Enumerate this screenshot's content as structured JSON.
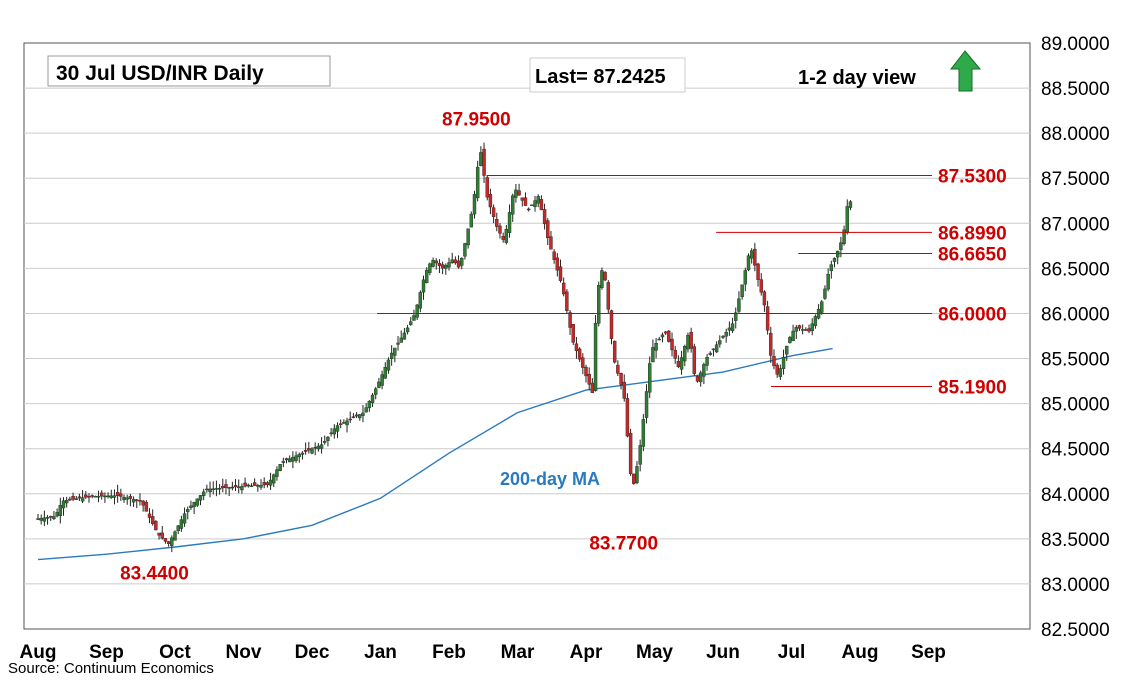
{
  "chart_data": {
    "type": "candlestick",
    "title": "30 Jul  USD/INR  Daily",
    "last_label": "Last= 87.2425",
    "view_label": "1-2 day view",
    "view_direction": "up",
    "source": "Source: Continuum Economics",
    "ylim": [
      82.5,
      89.0
    ],
    "y_ticks": [
      "82.5000",
      "83.0000",
      "83.5000",
      "84.0000",
      "84.5000",
      "85.0000",
      "85.5000",
      "86.0000",
      "86.5000",
      "87.0000",
      "87.5000",
      "88.0000",
      "88.5000",
      "89.0000"
    ],
    "x_ticks": [
      "Aug",
      "Sep",
      "Oct",
      "Nov",
      "Dec",
      "Jan",
      "Feb",
      "Mar",
      "Apr",
      "May",
      "Jun",
      "Jul",
      "Aug",
      "Sep"
    ],
    "colors": {
      "up": "#2e7d32",
      "down": "#c62828",
      "level": "#d00000",
      "ma": "#2a7abf",
      "grid": "#cccccc",
      "arrow": "#2eaa4a"
    },
    "levels": [
      {
        "value": 87.53,
        "label": "87.5300",
        "from_month": 6.55
      },
      {
        "value": 86.899,
        "label": "86.8990",
        "from_month": 9.9
      },
      {
        "value": 86.665,
        "label": "86.6650",
        "from_month": 11.1
      },
      {
        "value": 86.0,
        "label": "86.0000",
        "from_month": 4.95
      },
      {
        "value": 85.19,
        "label": "85.1900",
        "from_month": 10.7
      }
    ],
    "annotations": [
      {
        "text": "87.9500",
        "month": 6.4,
        "value": 87.95,
        "pos": "above"
      },
      {
        "text": "83.4400",
        "month": 1.7,
        "value": 83.44,
        "pos": "below"
      },
      {
        "text": "83.7700",
        "month": 8.55,
        "value": 83.77,
        "pos": "below"
      }
    ],
    "ma_label": {
      "text": "200-day MA",
      "month": 6.5,
      "value": 84.15
    },
    "ma_series": [
      [
        0,
        83.27
      ],
      [
        1,
        83.33
      ],
      [
        2,
        83.41
      ],
      [
        3,
        83.5
      ],
      [
        4,
        83.65
      ],
      [
        5,
        83.95
      ],
      [
        6,
        84.45
      ],
      [
        7,
        84.9
      ],
      [
        8,
        85.15
      ],
      [
        9,
        85.25
      ],
      [
        10,
        85.35
      ],
      [
        11,
        85.53
      ],
      [
        11.6,
        85.61
      ]
    ],
    "price_path": [
      [
        0,
        83.72
      ],
      [
        0.3,
        83.75
      ],
      [
        0.4,
        83.92
      ],
      [
        0.8,
        83.97
      ],
      [
        1.2,
        83.98
      ],
      [
        1.55,
        83.92
      ],
      [
        1.8,
        83.55
      ],
      [
        1.95,
        83.44
      ],
      [
        2.2,
        83.8
      ],
      [
        2.5,
        84.05
      ],
      [
        3.0,
        84.08
      ],
      [
        3.4,
        84.1
      ],
      [
        3.6,
        84.35
      ],
      [
        3.9,
        84.45
      ],
      [
        4.2,
        84.55
      ],
      [
        4.4,
        84.75
      ],
      [
        4.8,
        84.9
      ],
      [
        5.0,
        85.2
      ],
      [
        5.2,
        85.55
      ],
      [
        5.45,
        85.85
      ],
      [
        5.55,
        86.0
      ],
      [
        5.7,
        86.45
      ],
      [
        5.8,
        86.6
      ],
      [
        5.95,
        86.5
      ],
      [
        6.1,
        86.6
      ],
      [
        6.2,
        86.5
      ],
      [
        6.4,
        87.2
      ],
      [
        6.5,
        87.85
      ],
      [
        6.6,
        87.3
      ],
      [
        6.75,
        86.95
      ],
      [
        6.85,
        86.8
      ],
      [
        7.0,
        87.4
      ],
      [
        7.2,
        87.15
      ],
      [
        7.35,
        87.3
      ],
      [
        7.5,
        86.8
      ],
      [
        7.7,
        86.3
      ],
      [
        7.85,
        85.7
      ],
      [
        8.0,
        85.4
      ],
      [
        8.15,
        85.1
      ],
      [
        8.2,
        86.2
      ],
      [
        8.3,
        86.55
      ],
      [
        8.45,
        85.5
      ],
      [
        8.6,
        85.1
      ],
      [
        8.7,
        84.2
      ],
      [
        8.75,
        84.1
      ],
      [
        8.85,
        84.6
      ],
      [
        9.0,
        85.6
      ],
      [
        9.2,
        85.8
      ],
      [
        9.4,
        85.4
      ],
      [
        9.55,
        85.8
      ],
      [
        9.65,
        85.2
      ],
      [
        9.8,
        85.5
      ],
      [
        10.0,
        85.7
      ],
      [
        10.2,
        85.9
      ],
      [
        10.35,
        86.4
      ],
      [
        10.45,
        86.75
      ],
      [
        10.55,
        86.4
      ],
      [
        10.65,
        86.1
      ],
      [
        10.75,
        85.5
      ],
      [
        10.85,
        85.3
      ],
      [
        11.0,
        85.7
      ],
      [
        11.1,
        85.85
      ],
      [
        11.3,
        85.8
      ],
      [
        11.5,
        86.15
      ],
      [
        11.6,
        86.5
      ],
      [
        11.7,
        86.65
      ],
      [
        11.8,
        86.85
      ],
      [
        11.87,
        87.24
      ]
    ]
  }
}
